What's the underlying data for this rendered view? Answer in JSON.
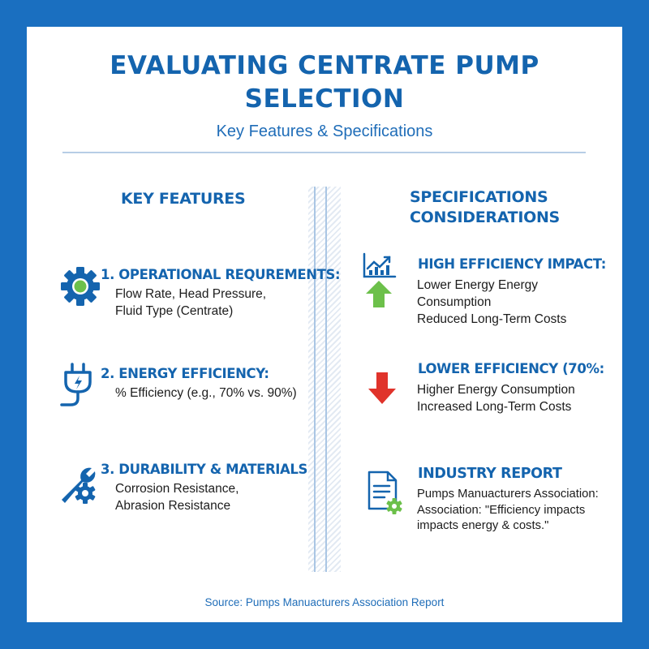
{
  "header": {
    "title_line1": "EVALUATING CENTRATE PUMP",
    "title_line2": "SELECTION",
    "subtitle": "Key Features & Specifications"
  },
  "left": {
    "heading": "KEY FEATURES",
    "items": [
      {
        "icon": "gear-icon",
        "title": "1. OPERATIONAL REQUREMENTS:",
        "lines": [
          "Flow Rate, Head Pressure,",
          "Fluid Type (Centrate)"
        ]
      },
      {
        "icon": "plug-icon",
        "title": "2. ENERGY EFFICIENCY:",
        "lines": [
          "% Efficiency (e.g., 70% vs. 90%)"
        ]
      },
      {
        "icon": "wrench-gear-icon",
        "title": "3. DURABILITY & MATERIALS",
        "lines": [
          "Corrosion Resistance,",
          "Abrasion Resistance"
        ]
      }
    ]
  },
  "right": {
    "heading_line1": "SPECIFICATIONS",
    "heading_line2": "CONSIDERATIONS",
    "items": [
      {
        "icon": "chart-up-arrow-icon",
        "title": "HIGH EFFICIENCY IMPACT:",
        "lines": [
          "Lower Energy Energy",
          "Consumption",
          "Reduced Long-Term Costs"
        ]
      },
      {
        "icon": "down-arrow-icon",
        "title": "LOWER EFFICIENCY (70%:",
        "lines": [
          "Higher Energy Consumption",
          "Increased Long-Term Costs"
        ]
      },
      {
        "icon": "document-gear-icon",
        "title": "INDUSTRY REPORT",
        "lines": [
          "Pumps Manuacturers Association:",
          "Association: \"Efficiency impacts",
          "impacts energy & costs.\""
        ]
      }
    ]
  },
  "footer": {
    "source": "Source: Pumps Manuacturers Association Report"
  },
  "colors": {
    "frame": "#1a6fc0",
    "heading": "#1464ae",
    "accent_green": "#6cc04a",
    "accent_red": "#e0332b"
  }
}
